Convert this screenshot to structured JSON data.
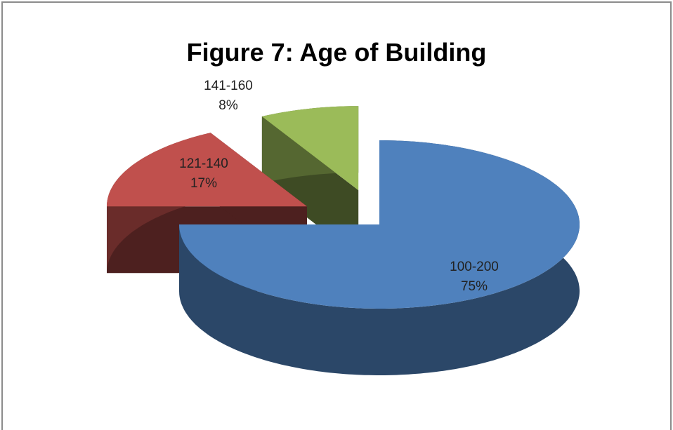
{
  "chart_data": {
    "type": "pie3d",
    "title": "Figure 7: Age of Building",
    "categories": [
      "100-200",
      "121-140",
      "141-160"
    ],
    "values": [
      75,
      17,
      8
    ],
    "value_labels": [
      "75%",
      "17%",
      "8%"
    ],
    "colors": [
      "#4f81bd",
      "#c0504d",
      "#9bbb59"
    ]
  }
}
